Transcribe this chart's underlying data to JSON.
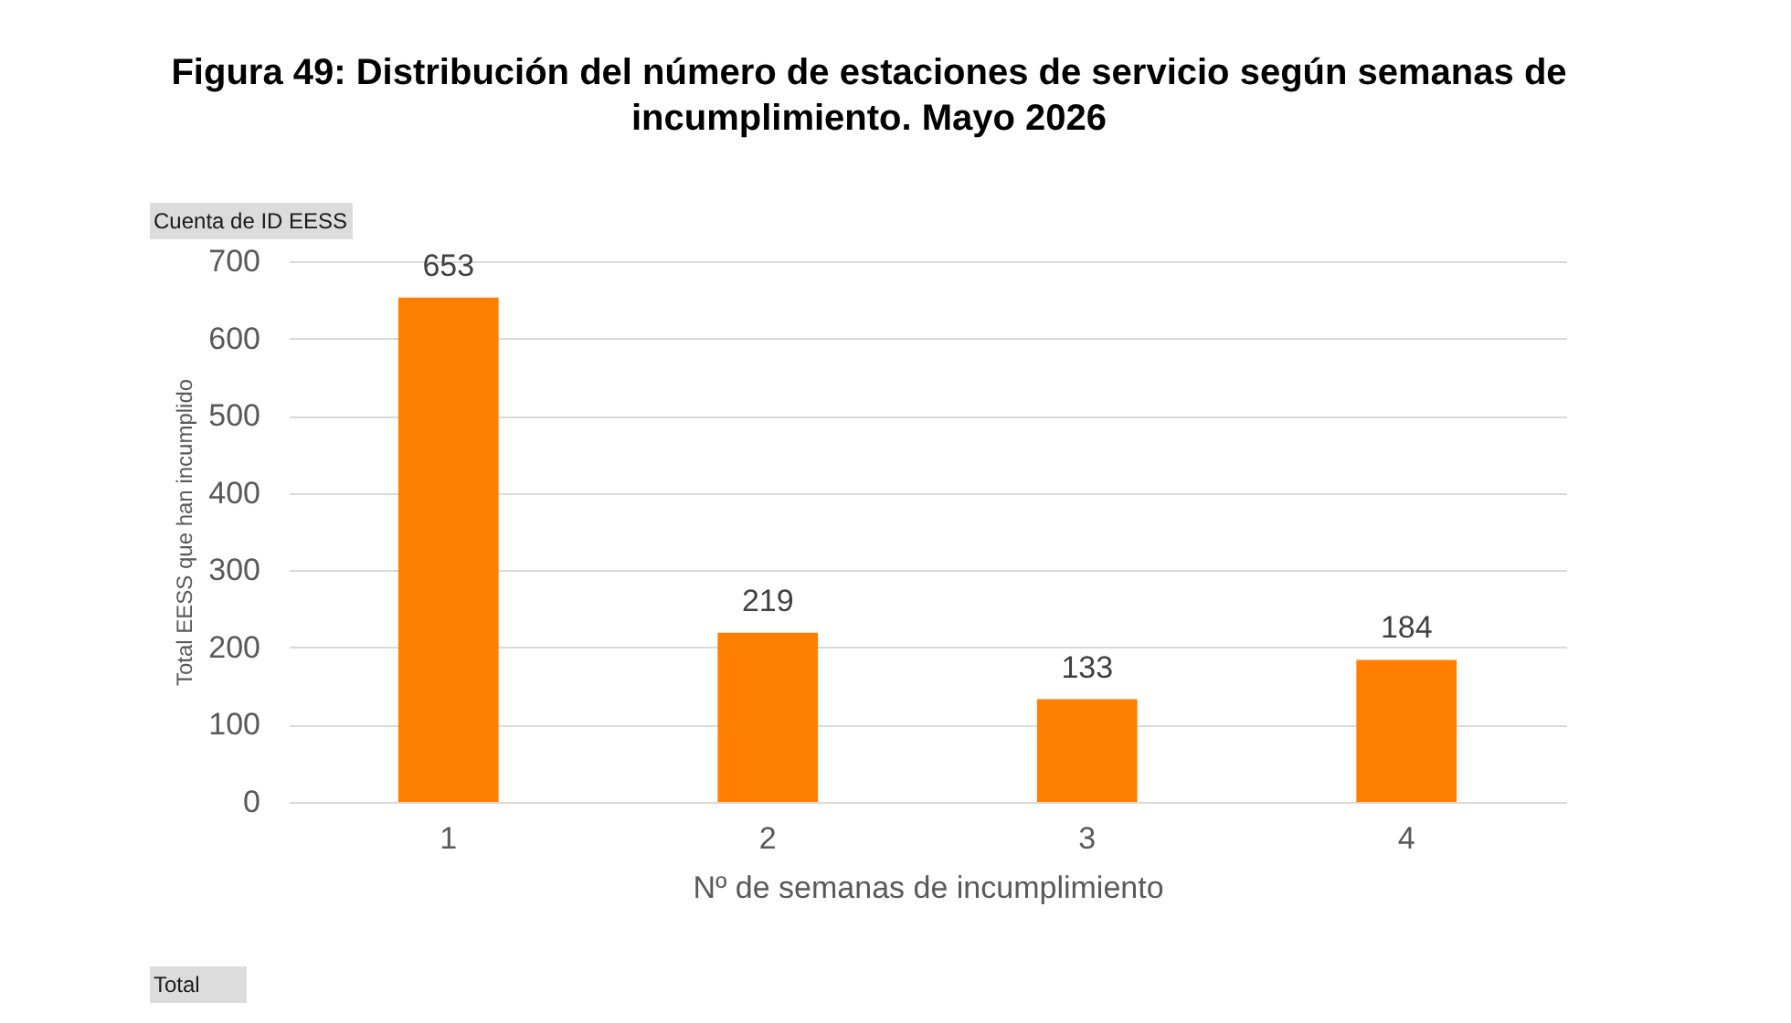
{
  "chart_data": {
    "type": "bar",
    "title": "Figura 49: Distribución del número de estaciones de servicio según semanas de\nincumplimiento. Mayo 2026",
    "xlabel": "Nº de semanas de incumplimiento",
    "ylabel": "Total EESS que han incumplido",
    "categories": [
      "1",
      "2",
      "3",
      "4"
    ],
    "values": [
      653,
      219,
      133,
      184
    ],
    "color": "#ff7f00",
    "ylim": [
      0,
      700
    ],
    "yticks": [
      0,
      100,
      200,
      300,
      400,
      500,
      600,
      700
    ],
    "grid": "y",
    "data_labels": true,
    "annotations": [
      "Cuenta de ID EESS",
      "Total"
    ]
  }
}
